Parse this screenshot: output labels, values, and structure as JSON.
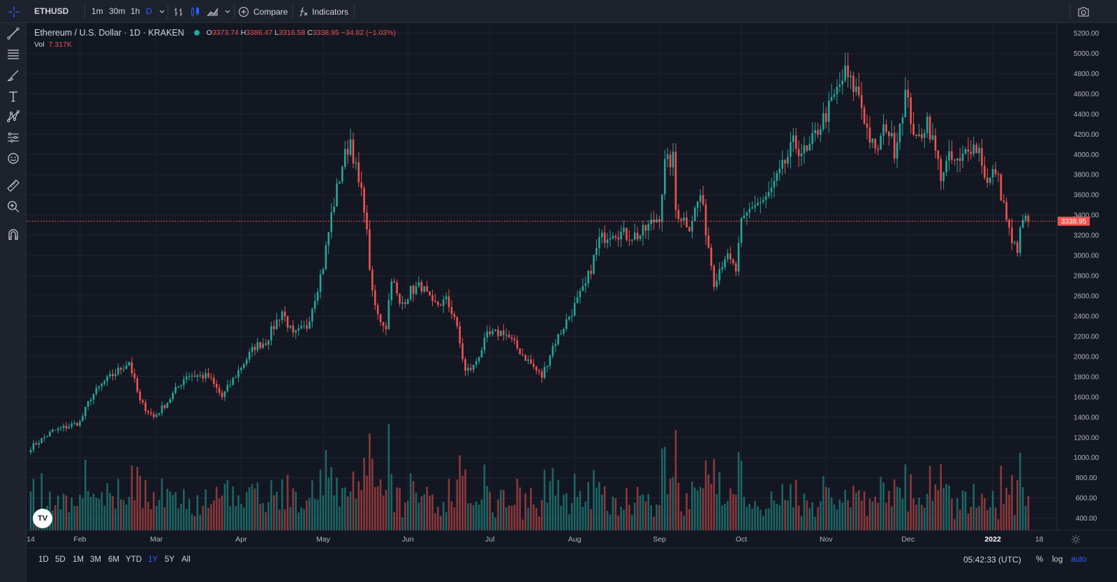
{
  "toolbar": {
    "symbol": "ETHUSD",
    "timeframes": [
      "1m",
      "30m",
      "1h",
      "D"
    ],
    "active_timeframe": "D",
    "compare_label": "Compare",
    "indicators_label": "Indicators"
  },
  "legend": {
    "title": "Ethereum / U.S. Dollar · 1D · KRAKEN",
    "open_key": "O",
    "open": "3373.74",
    "high_key": "H",
    "high": "3386.47",
    "low_key": "L",
    "low": "3316.58",
    "close_key": "C",
    "close": "3338.95",
    "change": "−34.82 (−1.03%)",
    "vol_key": "Vol",
    "vol_value": "7.317K"
  },
  "bottom": {
    "ranges": [
      "1D",
      "5D",
      "1M",
      "3M",
      "6M",
      "YTD",
      "1Y",
      "5Y",
      "All"
    ],
    "active_range": "1Y",
    "clock": "05:42:33 (UTC)",
    "percent_label": "%",
    "log_label": "log",
    "auto_label": "auto"
  },
  "colors": {
    "up": "#26a69a",
    "down": "#ef5350",
    "background": "#131722",
    "accent": "#2962ff",
    "price_line": "#ef5350"
  },
  "icons": {
    "left_toolbar": [
      "crosshair-icon",
      "trend-line-icon",
      "fib-retracement-icon",
      "brush-icon",
      "text-icon",
      "pattern-icon",
      "prediction-icon",
      "emoji-icon",
      "ruler-icon",
      "zoom-in-icon",
      "magnet-icon"
    ],
    "top_toolbar": [
      "bar-style-icon",
      "candle-style-icon",
      "area-style-icon",
      "chevron-down-icon",
      "add-circle-icon",
      "fx-icon",
      "camera-icon"
    ],
    "bottom": [
      "settings-gear-icon"
    ]
  },
  "chart_data": {
    "type": "candlestick",
    "title": "Ethereum / U.S. Dollar · 1D · KRAKEN",
    "x_tick_labels": [
      "14",
      "Feb",
      "Mar",
      "Apr",
      "May",
      "Jun",
      "Jul",
      "Aug",
      "Sep",
      "Oct",
      "Nov",
      "Dec",
      "2022",
      "18"
    ],
    "y_tick_labels": [
      "400.00",
      "600.00",
      "800.00",
      "1000.00",
      "1200.00",
      "1400.00",
      "1600.00",
      "1800.00",
      "2000.00",
      "2200.00",
      "2400.00",
      "2600.00",
      "2800.00",
      "3000.00",
      "3200.00",
      "3400.00",
      "3600.00",
      "3800.00",
      "4000.00",
      "4200.00",
      "4400.00",
      "4600.00",
      "4800.00",
      "5000.00",
      "5200.00"
    ],
    "ylim": [
      280,
      5300
    ],
    "grid": true,
    "last_price": 3338.95,
    "last_price_label": "3338.95",
    "start_date": "2021-01-14",
    "end_date": "2022-01-14",
    "price_anchors_date_close": [
      [
        "2021-01-14",
        1100
      ],
      [
        "2021-01-22",
        1260
      ],
      [
        "2021-02-01",
        1350
      ],
      [
        "2021-02-05",
        1600
      ],
      [
        "2021-02-10",
        1750
      ],
      [
        "2021-02-19",
        1950
      ],
      [
        "2021-02-23",
        1550
      ],
      [
        "2021-02-28",
        1400
      ],
      [
        "2021-03-05",
        1550
      ],
      [
        "2021-03-12",
        1820
      ],
      [
        "2021-03-20",
        1800
      ],
      [
        "2021-03-25",
        1600
      ],
      [
        "2021-04-01",
        1900
      ],
      [
        "2021-04-06",
        2100
      ],
      [
        "2021-04-10",
        2150
      ],
      [
        "2021-04-16",
        2450
      ],
      [
        "2021-04-20",
        2200
      ],
      [
        "2021-04-25",
        2300
      ],
      [
        "2021-05-01",
        2900
      ],
      [
        "2021-05-04",
        3400
      ],
      [
        "2021-05-08",
        3900
      ],
      [
        "2021-05-11",
        4150
      ],
      [
        "2021-05-14",
        3700
      ],
      [
        "2021-05-16",
        3500
      ],
      [
        "2021-05-19",
        2600
      ],
      [
        "2021-05-21",
        2400
      ],
      [
        "2021-05-24",
        2300
      ],
      [
        "2021-05-26",
        2800
      ],
      [
        "2021-05-29",
        2500
      ],
      [
        "2021-06-02",
        2650
      ],
      [
        "2021-06-06",
        2700
      ],
      [
        "2021-06-10",
        2500
      ],
      [
        "2021-06-15",
        2550
      ],
      [
        "2021-06-18",
        2400
      ],
      [
        "2021-06-22",
        1850
      ],
      [
        "2021-06-25",
        1900
      ],
      [
        "2021-06-30",
        2200
      ],
      [
        "2021-07-06",
        2250
      ],
      [
        "2021-07-12",
        2050
      ],
      [
        "2021-07-20",
        1800
      ],
      [
        "2021-07-24",
        2100
      ],
      [
        "2021-07-30",
        2400
      ],
      [
        "2021-08-05",
        2700
      ],
      [
        "2021-08-10",
        3150
      ],
      [
        "2021-08-15",
        3250
      ],
      [
        "2021-08-20",
        3200
      ],
      [
        "2021-08-25",
        3200
      ],
      [
        "2021-09-01",
        3400
      ],
      [
        "2021-09-03",
        3900
      ],
      [
        "2021-09-06",
        3950
      ],
      [
        "2021-09-07",
        3450
      ],
      [
        "2021-09-12",
        3300
      ],
      [
        "2021-09-16",
        3600
      ],
      [
        "2021-09-21",
        2750
      ],
      [
        "2021-09-25",
        3000
      ],
      [
        "2021-09-29",
        2850
      ],
      [
        "2021-10-01",
        3300
      ],
      [
        "2021-10-05",
        3500
      ],
      [
        "2021-10-10",
        3550
      ],
      [
        "2021-10-15",
        3800
      ],
      [
        "2021-10-20",
        4100
      ],
      [
        "2021-10-25",
        4000
      ],
      [
        "2021-10-29",
        4250
      ],
      [
        "2021-11-02",
        4450
      ],
      [
        "2021-11-08",
        4800
      ],
      [
        "2021-11-10",
        4700
      ],
      [
        "2021-11-13",
        4600
      ],
      [
        "2021-11-16",
        4250
      ],
      [
        "2021-11-19",
        4000
      ],
      [
        "2021-11-23",
        4300
      ],
      [
        "2021-11-26",
        4050
      ],
      [
        "2021-11-30",
        4600
      ],
      [
        "2021-12-03",
        4250
      ],
      [
        "2021-12-04",
        4100
      ],
      [
        "2021-12-08",
        4350
      ],
      [
        "2021-12-13",
        3800
      ],
      [
        "2021-12-16",
        3950
      ],
      [
        "2021-12-20",
        3900
      ],
      [
        "2021-12-23",
        4100
      ],
      [
        "2021-12-27",
        4050
      ],
      [
        "2021-12-30",
        3700
      ],
      [
        "2022-01-02",
        3850
      ],
      [
        "2022-01-05",
        3500
      ],
      [
        "2022-01-08",
        3100
      ],
      [
        "2022-01-10",
        3080
      ],
      [
        "2022-01-12",
        3350
      ],
      [
        "2022-01-14",
        3338.95
      ]
    ],
    "volume_label": "Vol",
    "last_volume": "7.317K"
  }
}
